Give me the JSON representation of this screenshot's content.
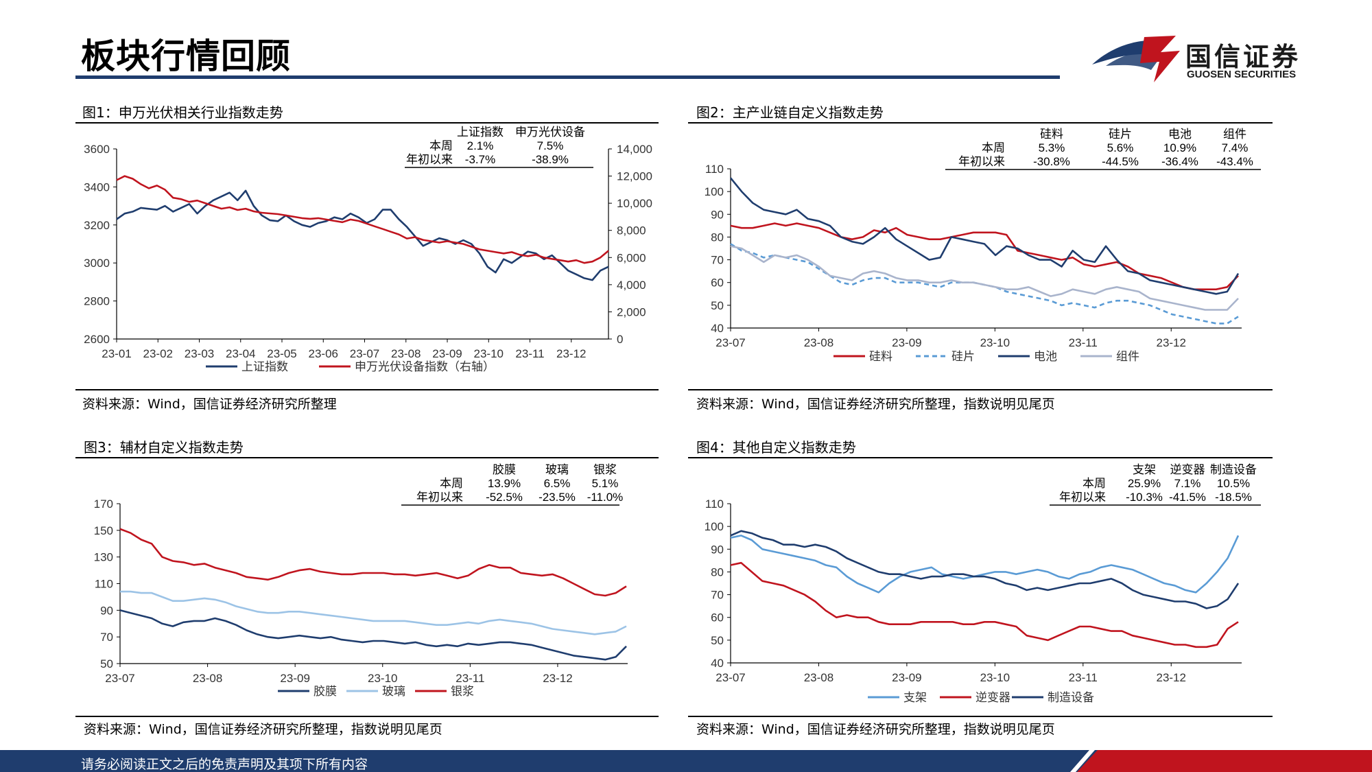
{
  "header": {
    "title": "板块行情回顾"
  },
  "logo": {
    "cn": "国信证券",
    "en": "GUOSEN SECURITIES"
  },
  "footer": {
    "text": "请务必阅读正文之后的免责声明及其项下所有内容"
  },
  "colors": {
    "navy": "#1f3d6e",
    "red": "#c0141e",
    "light_blue": "#5a9bd5",
    "gray_blue": "#a9b4cc"
  },
  "panels": {
    "p1": {
      "title": "图1：申万光伏相关行业指数走势",
      "source": "资料来源：Wind，国信证券经济研究所整理",
      "table": {
        "cols": [
          "上证指数",
          "申万光伏设备"
        ],
        "rows": [
          {
            "label": "本周",
            "values": [
              "2.1%",
              "7.5%"
            ]
          },
          {
            "label": "年初以来",
            "values": [
              "-3.7%",
              "-38.9%"
            ]
          }
        ]
      }
    },
    "p2": {
      "title": "图2：主产业链自定义指数走势",
      "source": "资料来源：Wind，国信证券经济研究所整理，指数说明见尾页",
      "table": {
        "cols": [
          "硅料",
          "硅片",
          "电池",
          "组件"
        ],
        "rows": [
          {
            "label": "本周",
            "values": [
              "5.3%",
              "5.6%",
              "10.9%",
              "7.4%"
            ]
          },
          {
            "label": "年初以来",
            "values": [
              "-30.8%",
              "-44.5%",
              "-36.4%",
              "-43.4%"
            ]
          }
        ]
      }
    },
    "p3": {
      "title": "图3：辅材自定义指数走势",
      "source": "资料来源：Wind，国信证券经济研究所整理，指数说明见尾页",
      "table": {
        "cols": [
          "胶膜",
          "玻璃",
          "银浆"
        ],
        "rows": [
          {
            "label": "本周",
            "values": [
              "13.9%",
              "6.5%",
              "5.1%"
            ]
          },
          {
            "label": "年初以来",
            "values": [
              "-52.5%",
              "-23.5%",
              "-11.0%"
            ]
          }
        ]
      }
    },
    "p4": {
      "title": "图4：其他自定义指数走势",
      "source": "资料来源：Wind，国信证券经济研究所整理，指数说明见尾页",
      "table": {
        "cols": [
          "支架",
          "逆变器",
          "制造设备"
        ],
        "rows": [
          {
            "label": "本周",
            "values": [
              "25.9%",
              "7.1%",
              "10.5%"
            ]
          },
          {
            "label": "年初以来",
            "values": [
              "-10.3%",
              "-41.5%",
              "-18.5%"
            ]
          }
        ]
      }
    }
  },
  "chart_data": [
    {
      "type": "line",
      "x_ticks": [
        "23-01",
        "23-02",
        "23-03",
        "23-04",
        "23-05",
        "23-06",
        "23-07",
        "23-08",
        "23-09",
        "23-10",
        "23-11",
        "23-12"
      ],
      "ylim": [
        2600,
        3600
      ],
      "y_ticks": [
        "3600",
        "3400",
        "3200",
        "3000",
        "2800",
        "2600"
      ],
      "y2lim": [
        0,
        14000
      ],
      "y2_ticks": [
        "14,000",
        "12,000",
        "10,000",
        "8,000",
        "6,000",
        "4,000",
        "2,000",
        "0"
      ],
      "series": [
        {
          "name": "上证指数",
          "axis": "left",
          "color": "#1f3d6e",
          "values": [
            3230,
            3260,
            3270,
            3290,
            3285,
            3280,
            3300,
            3270,
            3290,
            3310,
            3260,
            3300,
            3330,
            3350,
            3370,
            3330,
            3380,
            3300,
            3250,
            3225,
            3220,
            3250,
            3220,
            3200,
            3190,
            3210,
            3220,
            3240,
            3230,
            3260,
            3240,
            3210,
            3230,
            3280,
            3280,
            3230,
            3190,
            3140,
            3090,
            3110,
            3130,
            3120,
            3100,
            3120,
            3100,
            3050,
            2980,
            2950,
            3020,
            3000,
            3030,
            3060,
            3050,
            3020,
            3040,
            3000,
            2960,
            2940,
            2920,
            2910,
            2960,
            2980
          ]
        },
        {
          "name": "申万光伏设备指数（右轴）",
          "axis": "right",
          "color": "#c0141e",
          "values": [
            11700,
            12000,
            11800,
            11400,
            11100,
            11300,
            11000,
            10400,
            10300,
            10100,
            10200,
            10000,
            9800,
            9600,
            9700,
            9500,
            9600,
            9400,
            9300,
            9250,
            9200,
            9100,
            9000,
            8900,
            8850,
            8900,
            8800,
            8700,
            8600,
            8800,
            8700,
            8500,
            8300,
            8100,
            7900,
            7700,
            7400,
            7500,
            7300,
            7200,
            7100,
            7200,
            7100,
            7000,
            6800,
            6600,
            6500,
            6400,
            6300,
            6400,
            6200,
            6100,
            6200,
            6000,
            5900,
            5800,
            5700,
            5800,
            5600,
            5700,
            6000,
            6500
          ]
        }
      ]
    },
    {
      "type": "line",
      "x_ticks": [
        "23-07",
        "23-08",
        "23-09",
        "23-10",
        "23-11",
        "23-12"
      ],
      "ylim": [
        40,
        110
      ],
      "y_ticks": [
        "110",
        "100",
        "90",
        "80",
        "70",
        "60",
        "50",
        "40"
      ],
      "series": [
        {
          "name": "硅料",
          "color": "#c0141e",
          "dash": false,
          "values": [
            85,
            84,
            84,
            85,
            86,
            85,
            86,
            85,
            84,
            82,
            80,
            79,
            80,
            83,
            82,
            84,
            81,
            80,
            79,
            79,
            80,
            81,
            82,
            82,
            82,
            81,
            74,
            73,
            72,
            71,
            70,
            71,
            68,
            67,
            68,
            69,
            67,
            64,
            63,
            62,
            60,
            58,
            57,
            57,
            57,
            58,
            63
          ]
        },
        {
          "name": "硅片",
          "color": "#5a9bd5",
          "dash": true,
          "values": [
            77,
            74,
            73,
            71,
            72,
            71,
            70,
            69,
            66,
            63,
            60,
            59,
            61,
            62,
            62,
            60,
            60,
            60,
            59,
            58,
            60,
            60,
            60,
            59,
            58,
            56,
            55,
            54,
            53,
            52,
            50,
            51,
            50,
            49,
            51,
            52,
            52,
            51,
            50,
            48,
            46,
            45,
            44,
            43,
            42,
            42,
            45
          ]
        },
        {
          "name": "电池",
          "color": "#1f3d6e",
          "dash": false,
          "values": [
            106,
            100,
            95,
            92,
            91,
            90,
            92,
            88,
            87,
            85,
            80,
            78,
            77,
            80,
            84,
            79,
            76,
            73,
            70,
            71,
            80,
            79,
            78,
            77,
            72,
            76,
            75,
            72,
            70,
            70,
            67,
            74,
            70,
            69,
            76,
            70,
            65,
            64,
            61,
            60,
            59,
            58,
            57,
            56,
            55,
            56,
            64
          ]
        },
        {
          "name": "组件",
          "color": "#a9b4cc",
          "dash": false,
          "values": [
            76,
            75,
            72,
            69,
            72,
            71,
            72,
            70,
            67,
            63,
            62,
            61,
            64,
            65,
            64,
            62,
            61,
            61,
            60,
            60,
            61,
            60,
            60,
            59,
            58,
            57,
            57,
            58,
            56,
            54,
            55,
            57,
            56,
            55,
            57,
            58,
            57,
            56,
            53,
            52,
            51,
            50,
            49,
            48,
            48,
            48,
            53
          ]
        }
      ]
    },
    {
      "type": "line",
      "x_ticks": [
        "23-07",
        "23-08",
        "23-09",
        "23-10",
        "23-11",
        "23-12"
      ],
      "ylim": [
        50,
        170
      ],
      "y_ticks": [
        "170",
        "150",
        "130",
        "110",
        "90",
        "70",
        "50"
      ],
      "series": [
        {
          "name": "胶膜",
          "color": "#1f3d6e",
          "values": [
            90,
            88,
            86,
            84,
            80,
            78,
            81,
            82,
            82,
            84,
            82,
            79,
            75,
            72,
            70,
            69,
            70,
            71,
            70,
            69,
            70,
            68,
            67,
            66,
            67,
            67,
            66,
            65,
            66,
            64,
            63,
            64,
            63,
            65,
            64,
            65,
            66,
            66,
            65,
            64,
            62,
            60,
            58,
            56,
            55,
            54,
            53,
            55,
            63
          ]
        },
        {
          "name": "玻璃",
          "color": "#9cc3e6",
          "values": [
            104,
            104,
            103,
            103,
            100,
            97,
            97,
            98,
            99,
            98,
            96,
            93,
            91,
            89,
            88,
            88,
            89,
            89,
            88,
            87,
            86,
            85,
            84,
            83,
            82,
            82,
            82,
            82,
            81,
            80,
            79,
            79,
            80,
            81,
            80,
            82,
            83,
            82,
            81,
            80,
            78,
            76,
            75,
            74,
            73,
            72,
            73,
            74,
            78
          ]
        },
        {
          "name": "银浆",
          "color": "#c0141e",
          "values": [
            151,
            148,
            143,
            140,
            130,
            127,
            126,
            124,
            125,
            122,
            120,
            118,
            115,
            114,
            113,
            115,
            118,
            120,
            121,
            119,
            118,
            117,
            117,
            118,
            118,
            118,
            117,
            117,
            116,
            117,
            118,
            116,
            114,
            116,
            121,
            124,
            122,
            122,
            118,
            117,
            116,
            117,
            114,
            110,
            106,
            102,
            101,
            103,
            108
          ]
        }
      ]
    },
    {
      "type": "line",
      "x_ticks": [
        "23-07",
        "23-08",
        "23-09",
        "23-10",
        "23-11",
        "23-12"
      ],
      "ylim": [
        40,
        110
      ],
      "y_ticks": [
        "110",
        "100",
        "90",
        "80",
        "70",
        "60",
        "50",
        "40"
      ],
      "series": [
        {
          "name": "支架",
          "color": "#5a9bd5",
          "values": [
            95,
            96,
            94,
            90,
            89,
            88,
            87,
            86,
            85,
            83,
            82,
            78,
            75,
            73,
            71,
            75,
            78,
            80,
            81,
            82,
            79,
            78,
            77,
            78,
            79,
            80,
            80,
            79,
            80,
            81,
            80,
            78,
            77,
            79,
            80,
            82,
            83,
            82,
            81,
            79,
            77,
            75,
            74,
            72,
            71,
            75,
            80,
            86,
            96
          ]
        },
        {
          "name": "逆变器",
          "color": "#c0141e",
          "values": [
            83,
            84,
            80,
            76,
            75,
            74,
            72,
            70,
            67,
            63,
            60,
            61,
            60,
            60,
            58,
            57,
            57,
            57,
            58,
            58,
            58,
            58,
            57,
            57,
            58,
            58,
            57,
            56,
            52,
            51,
            50,
            52,
            54,
            56,
            56,
            55,
            54,
            54,
            52,
            51,
            50,
            49,
            48,
            48,
            47,
            47,
            48,
            55,
            58
          ]
        },
        {
          "name": "制造设备",
          "color": "#1f3d6e",
          "values": [
            96,
            98,
            97,
            95,
            94,
            92,
            92,
            91,
            92,
            91,
            89,
            86,
            84,
            82,
            80,
            79,
            79,
            78,
            77,
            78,
            78,
            79,
            79,
            78,
            78,
            77,
            75,
            74,
            72,
            73,
            72,
            73,
            74,
            75,
            75,
            76,
            77,
            75,
            72,
            70,
            69,
            68,
            67,
            67,
            66,
            64,
            65,
            68,
            75
          ]
        }
      ]
    }
  ]
}
